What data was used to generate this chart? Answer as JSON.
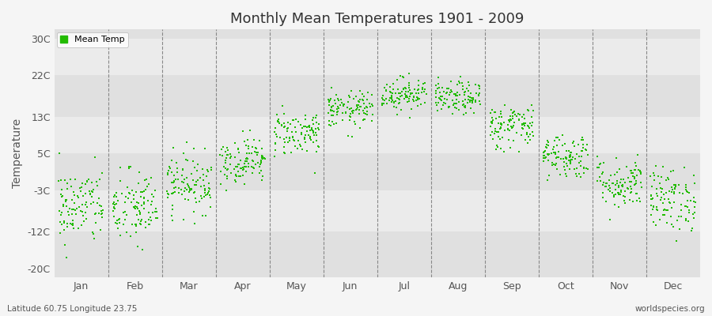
{
  "title": "Monthly Mean Temperatures 1901 - 2009",
  "ylabel": "Temperature",
  "xlabel_bottom_left": "Latitude 60.75 Longitude 23.75",
  "xlabel_bottom_right": "worldspecies.org",
  "legend_label": "Mean Temp",
  "dot_color": "#22bb00",
  "background_color": "#f5f5f5",
  "plot_bg_color": "#ebebeb",
  "band_colors": [
    "#e0e0e0",
    "#ebebeb"
  ],
  "ytick_labels": [
    "-20C",
    "-12C",
    "-3C",
    "5C",
    "13C",
    "22C",
    "30C"
  ],
  "ytick_values": [
    -20,
    -12,
    -3,
    5,
    13,
    22,
    30
  ],
  "ylim": [
    -22,
    32
  ],
  "months": [
    "Jan",
    "Feb",
    "Mar",
    "Apr",
    "May",
    "Jun",
    "Jul",
    "Aug",
    "Sep",
    "Oct",
    "Nov",
    "Dec"
  ],
  "month_means": [
    -6.5,
    -7.0,
    -1.5,
    3.5,
    9.5,
    14.5,
    18.0,
    17.0,
    11.0,
    4.5,
    -1.5,
    -5.0
  ],
  "month_stds": [
    4.2,
    4.2,
    3.2,
    2.5,
    2.5,
    2.0,
    1.8,
    1.8,
    2.5,
    2.5,
    2.8,
    3.5
  ],
  "n_years": 109,
  "seed": 42
}
